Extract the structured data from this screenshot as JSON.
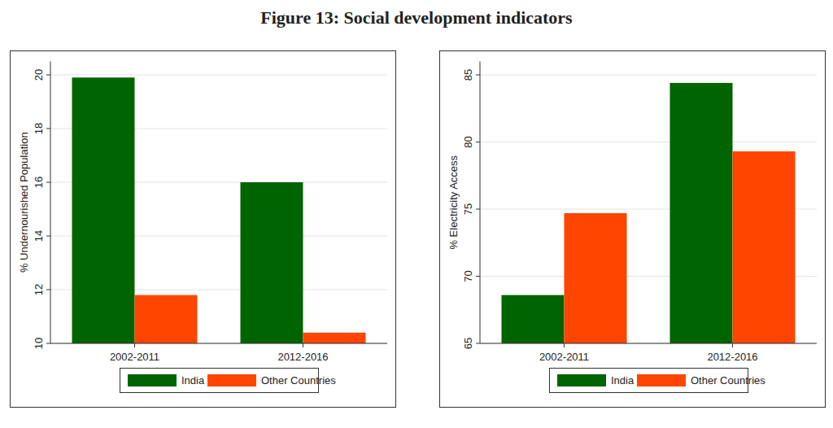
{
  "figure_title": "Figure 13: Social development indicators",
  "chart_data": [
    {
      "type": "bar",
      "y_label": "% Undernourished Population",
      "categories": [
        "2002-2011",
        "2012-2016"
      ],
      "series": [
        {
          "name": "India",
          "color": "#006400",
          "values": [
            19.9,
            16.0
          ]
        },
        {
          "name": "Other Countries",
          "color": "#ff4500",
          "values": [
            11.8,
            10.4
          ]
        }
      ],
      "ylim": [
        10,
        20.5
      ],
      "yticks": [
        10,
        12,
        14,
        16,
        18,
        20
      ],
      "grid": true,
      "legend": "bottom"
    },
    {
      "type": "bar",
      "y_label": "% Electricity Access",
      "categories": [
        "2002-2011",
        "2012-2016"
      ],
      "series": [
        {
          "name": "India",
          "color": "#006400",
          "values": [
            68.6,
            84.4
          ]
        },
        {
          "name": "Other Countries",
          "color": "#ff4500",
          "values": [
            74.7,
            79.3
          ]
        }
      ],
      "ylim": [
        65,
        86
      ],
      "yticks": [
        65,
        70,
        75,
        80,
        85
      ],
      "grid": true,
      "legend": "bottom"
    }
  ]
}
